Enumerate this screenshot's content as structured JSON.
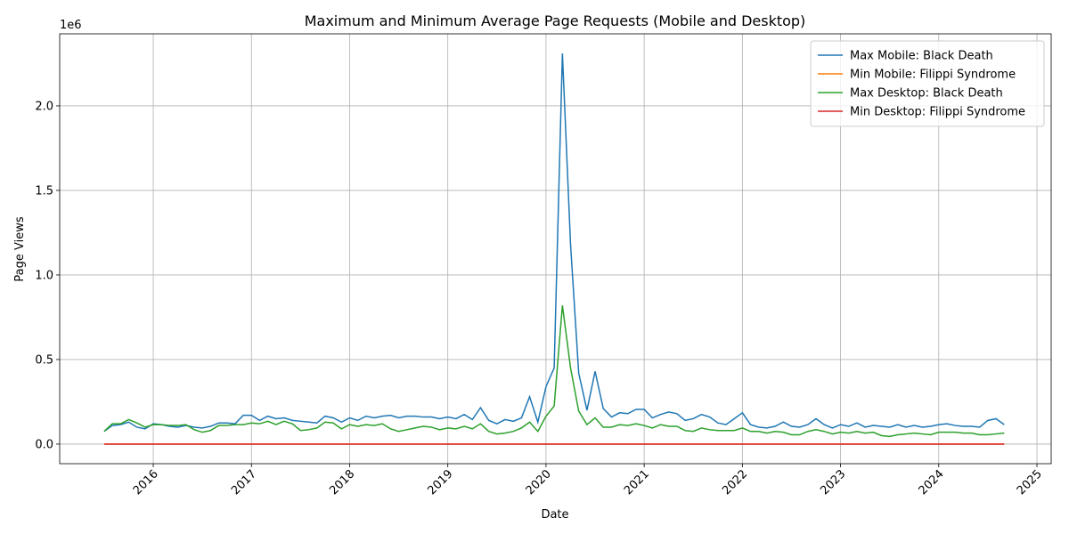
{
  "chart_data": {
    "type": "line",
    "title": "Maximum and Minimum Average Page Requests (Mobile and Desktop)",
    "x_label": "Date",
    "y_label": "Page Views",
    "y_offset_label": "1e6",
    "x": [
      2015.5,
      2015.583,
      2015.667,
      2015.75,
      2015.833,
      2015.917,
      2016,
      2016.083,
      2016.167,
      2016.25,
      2016.333,
      2016.417,
      2016.5,
      2016.583,
      2016.667,
      2016.75,
      2016.833,
      2016.917,
      2017,
      2017.083,
      2017.167,
      2017.25,
      2017.333,
      2017.417,
      2017.5,
      2017.583,
      2017.667,
      2017.75,
      2017.833,
      2017.917,
      2018,
      2018.083,
      2018.167,
      2018.25,
      2018.333,
      2018.417,
      2018.5,
      2018.583,
      2018.667,
      2018.75,
      2018.833,
      2018.917,
      2019,
      2019.083,
      2019.167,
      2019.25,
      2019.333,
      2019.417,
      2019.5,
      2019.583,
      2019.667,
      2019.75,
      2019.833,
      2019.917,
      2020,
      2020.083,
      2020.167,
      2020.25,
      2020.333,
      2020.417,
      2020.5,
      2020.583,
      2020.667,
      2020.75,
      2020.833,
      2020.917,
      2021,
      2021.083,
      2021.167,
      2021.25,
      2021.333,
      2021.417,
      2021.5,
      2021.583,
      2021.667,
      2021.75,
      2021.833,
      2021.917,
      2022,
      2022.083,
      2022.167,
      2022.25,
      2022.333,
      2022.417,
      2022.5,
      2022.583,
      2022.667,
      2022.75,
      2022.833,
      2022.917,
      2023,
      2023.083,
      2023.167,
      2023.25,
      2023.333,
      2023.417,
      2023.5,
      2023.583,
      2023.667,
      2023.75,
      2023.833,
      2023.917,
      2024,
      2024.083,
      2024.167,
      2024.25,
      2024.333,
      2024.417,
      2024.5,
      2024.583,
      2024.667
    ],
    "series": [
      {
        "name": "Max Mobile: Black Death",
        "color": "#1f77b4",
        "values": [
          75000,
          110000,
          115000,
          130000,
          100000,
          90000,
          120000,
          115000,
          105000,
          100000,
          110000,
          100000,
          95000,
          105000,
          125000,
          125000,
          120000,
          170000,
          170000,
          140000,
          165000,
          150000,
          155000,
          140000,
          135000,
          130000,
          125000,
          165000,
          155000,
          130000,
          155000,
          140000,
          165000,
          155000,
          165000,
          170000,
          155000,
          165000,
          165000,
          160000,
          160000,
          150000,
          160000,
          150000,
          175000,
          145000,
          215000,
          140000,
          120000,
          145000,
          135000,
          155000,
          280000,
          130000,
          340000,
          450000,
          2310000,
          1180000,
          420000,
          200000,
          430000,
          210000,
          160000,
          185000,
          180000,
          205000,
          205000,
          155000,
          175000,
          190000,
          180000,
          140000,
          150000,
          175000,
          160000,
          125000,
          115000,
          150000,
          185000,
          115000,
          100000,
          95000,
          105000,
          130000,
          105000,
          100000,
          115000,
          150000,
          115000,
          95000,
          115000,
          105000,
          125000,
          100000,
          110000,
          105000,
          100000,
          115000,
          100000,
          110000,
          100000,
          105000,
          115000,
          120000,
          110000,
          105000,
          105000,
          100000,
          140000,
          150000,
          115000
        ]
      },
      {
        "name": "Min Mobile: Filippi Syndrome",
        "color": "#ff7f0e",
        "values": [
          0,
          0,
          0,
          0,
          0,
          0,
          0,
          0,
          0,
          0,
          0,
          0,
          0,
          0,
          0,
          0,
          0,
          0,
          0,
          0,
          0,
          0,
          0,
          0,
          0,
          0,
          0,
          0,
          0,
          0,
          0,
          0,
          0,
          0,
          0,
          0,
          0,
          0,
          0,
          0,
          0,
          0,
          0,
          0,
          0,
          0,
          0,
          0,
          0,
          0,
          0,
          0,
          0,
          0,
          0,
          0,
          0,
          0,
          0,
          0,
          0,
          0,
          0,
          0,
          0,
          0,
          0,
          0,
          0,
          0,
          0,
          0,
          0,
          0,
          0,
          0,
          0,
          0,
          0,
          0,
          0,
          0,
          0,
          0,
          0,
          0,
          0,
          0,
          0,
          0,
          0,
          0,
          0,
          0,
          0,
          0,
          0,
          0,
          0,
          0,
          0,
          0,
          0,
          0,
          0,
          0,
          0,
          0,
          0,
          0,
          0
        ]
      },
      {
        "name": "Max Desktop: Black Death",
        "color": "#2ca02c",
        "values": [
          75000,
          120000,
          120000,
          145000,
          125000,
          100000,
          115000,
          115000,
          110000,
          110000,
          115000,
          85000,
          70000,
          80000,
          110000,
          110000,
          115000,
          115000,
          125000,
          120000,
          135000,
          115000,
          135000,
          120000,
          80000,
          85000,
          95000,
          130000,
          125000,
          90000,
          115000,
          105000,
          115000,
          110000,
          120000,
          90000,
          75000,
          85000,
          95000,
          105000,
          100000,
          85000,
          95000,
          90000,
          105000,
          90000,
          120000,
          75000,
          60000,
          65000,
          75000,
          95000,
          130000,
          75000,
          165000,
          225000,
          820000,
          450000,
          195000,
          115000,
          155000,
          100000,
          100000,
          115000,
          110000,
          120000,
          110000,
          95000,
          115000,
          105000,
          105000,
          80000,
          75000,
          95000,
          85000,
          80000,
          80000,
          80000,
          95000,
          75000,
          75000,
          65000,
          75000,
          70000,
          55000,
          55000,
          75000,
          85000,
          75000,
          60000,
          70000,
          65000,
          75000,
          65000,
          70000,
          50000,
          45000,
          55000,
          60000,
          65000,
          60000,
          55000,
          70000,
          70000,
          70000,
          65000,
          65000,
          55000,
          55000,
          60000,
          65000
        ]
      },
      {
        "name": "Min Desktop: Filippi Syndrome",
        "color": "#d62728",
        "values": [
          0,
          0,
          0,
          0,
          0,
          0,
          0,
          0,
          0,
          0,
          0,
          0,
          0,
          0,
          0,
          0,
          0,
          0,
          0,
          0,
          0,
          0,
          0,
          0,
          0,
          0,
          0,
          0,
          0,
          0,
          0,
          0,
          0,
          0,
          0,
          0,
          0,
          0,
          0,
          0,
          0,
          0,
          0,
          0,
          0,
          0,
          0,
          0,
          0,
          0,
          0,
          0,
          0,
          0,
          0,
          0,
          0,
          0,
          0,
          0,
          0,
          0,
          0,
          0,
          0,
          0,
          0,
          0,
          0,
          0,
          0,
          0,
          0,
          0,
          0,
          0,
          0,
          0,
          0,
          0,
          0,
          0,
          0,
          0,
          0,
          0,
          0,
          0,
          0,
          0,
          0,
          0,
          0,
          0,
          0,
          0,
          0,
          0,
          0,
          0,
          0,
          0,
          0,
          0,
          0,
          0,
          0,
          0,
          0,
          0,
          0
        ]
      }
    ],
    "xlim": [
      2015.047,
      2025.145
    ],
    "xticks": [
      2016,
      2017,
      2018,
      2019,
      2020,
      2021,
      2022,
      2023,
      2024,
      2025
    ],
    "ylim": [
      -116000,
      2426000
    ],
    "yticks": [
      {
        "value": 0,
        "label": "0.0"
      },
      {
        "value": 500000,
        "label": "0.5"
      },
      {
        "value": 1000000,
        "label": "1.0"
      },
      {
        "value": 1500000,
        "label": "1.5"
      },
      {
        "value": 2000000,
        "label": "2.0"
      }
    ],
    "grid": true,
    "legend": "upper right"
  }
}
